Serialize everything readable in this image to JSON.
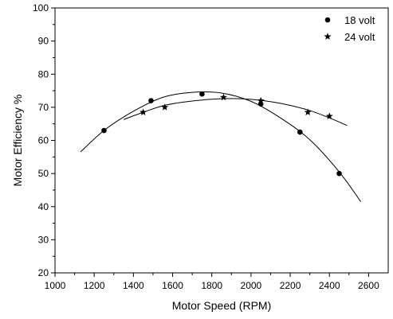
{
  "chart_data": {
    "type": "scatter",
    "title": "",
    "xlabel": "Motor Speed (RPM)",
    "ylabel": "Motor Efficiency %",
    "xlim": [
      1000,
      2700
    ],
    "ylim": [
      20,
      100
    ],
    "x_ticks": [
      1000,
      1200,
      1400,
      1600,
      1800,
      2000,
      2200,
      2400,
      2600
    ],
    "y_ticks": [
      20,
      30,
      40,
      50,
      60,
      70,
      80,
      90,
      100
    ],
    "grid": false,
    "legend_position": "top-right",
    "series": [
      {
        "name": "18 volt",
        "marker": "circle",
        "points": [
          {
            "x": 1250,
            "y": 63
          },
          {
            "x": 1490,
            "y": 72
          },
          {
            "x": 1750,
            "y": 74
          },
          {
            "x": 2050,
            "y": 71
          },
          {
            "x": 2250,
            "y": 62.5
          },
          {
            "x": 2450,
            "y": 50
          }
        ],
        "fit_curve": [
          {
            "x": 1130,
            "y": 56.5
          },
          {
            "x": 1250,
            "y": 63
          },
          {
            "x": 1400,
            "y": 68.8
          },
          {
            "x": 1550,
            "y": 73
          },
          {
            "x": 1700,
            "y": 74.5
          },
          {
            "x": 1850,
            "y": 74.3
          },
          {
            "x": 2000,
            "y": 71.8
          },
          {
            "x": 2150,
            "y": 66.8
          },
          {
            "x": 2300,
            "y": 60.2
          },
          {
            "x": 2450,
            "y": 50.5
          },
          {
            "x": 2560,
            "y": 41.5
          }
        ]
      },
      {
        "name": "24 volt",
        "marker": "star",
        "points": [
          {
            "x": 1450,
            "y": 68.5
          },
          {
            "x": 1560,
            "y": 70
          },
          {
            "x": 1860,
            "y": 73
          },
          {
            "x": 2050,
            "y": 72
          },
          {
            "x": 2290,
            "y": 68.5
          },
          {
            "x": 2400,
            "y": 67.3
          }
        ],
        "fit_curve": [
          {
            "x": 1350,
            "y": 66.3
          },
          {
            "x": 1450,
            "y": 68.5
          },
          {
            "x": 1560,
            "y": 70.6
          },
          {
            "x": 1700,
            "y": 71.9
          },
          {
            "x": 1860,
            "y": 72.6
          },
          {
            "x": 2000,
            "y": 72.4
          },
          {
            "x": 2150,
            "y": 71.2
          },
          {
            "x": 2290,
            "y": 69.2
          },
          {
            "x": 2400,
            "y": 66.8
          },
          {
            "x": 2490,
            "y": 64.5
          }
        ]
      }
    ]
  }
}
